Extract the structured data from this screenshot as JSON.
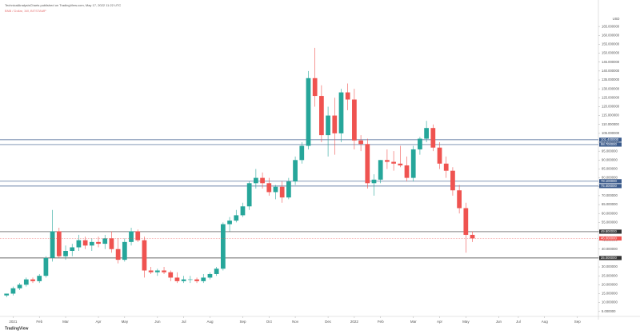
{
  "chart_data": {
    "type": "candlestick",
    "title": "TechnicalAnalysisCharts published on TradingView.com, May 17, 2022 11:22 UTC",
    "subtitle": "BNB / Dollar, 1W, BITSTAMP",
    "currency": "USD",
    "watermark": "TradingView",
    "up_color": "#26a69a",
    "down_color": "#ef5350",
    "open": [
      14,
      15,
      18,
      20,
      23,
      22,
      25,
      35,
      50,
      36,
      39,
      41,
      45,
      42,
      44,
      43,
      46,
      40,
      34,
      44,
      50,
      45,
      28,
      27,
      28,
      27,
      24,
      22,
      23,
      23,
      22,
      24,
      26,
      29,
      54,
      56,
      59,
      64,
      77,
      80,
      77,
      72,
      75,
      69,
      78,
      90,
      98,
      136,
      126,
      104,
      115,
      105,
      128,
      124,
      101,
      99,
      77,
      79,
      90,
      89,
      88,
      87,
      80,
      96,
      102,
      108,
      97,
      88,
      84,
      73,
      63,
      48
    ],
    "high": [
      15,
      19,
      21,
      24,
      24,
      26,
      36,
      62,
      52,
      42,
      43,
      48,
      47,
      46,
      47,
      48,
      50,
      46,
      46,
      52,
      51,
      47,
      30,
      29,
      30,
      28,
      27,
      25,
      25,
      24,
      26,
      27,
      30,
      55,
      58,
      62,
      66,
      78,
      85,
      83,
      80,
      76,
      78,
      80,
      92,
      100,
      140,
      153,
      132,
      120,
      125,
      130,
      133,
      130,
      104,
      102,
      82,
      90,
      96,
      95,
      98,
      92,
      98,
      103,
      112,
      110,
      100,
      92,
      86,
      76,
      66,
      50
    ],
    "low": [
      13,
      14,
      17,
      19,
      21,
      21,
      24,
      33,
      35,
      34,
      36,
      39,
      40,
      39,
      41,
      40,
      38,
      32,
      33,
      42,
      44,
      24,
      26,
      25,
      26,
      22,
      21,
      21,
      21,
      21,
      21,
      23,
      25,
      28,
      50,
      55,
      58,
      62,
      74,
      74,
      70,
      68,
      66,
      68,
      76,
      88,
      96,
      120,
      100,
      92,
      93,
      100,
      118,
      96,
      95,
      74,
      70,
      77,
      85,
      84,
      86,
      78,
      78,
      93,
      100,
      95,
      85,
      80,
      70,
      60,
      38,
      44
    ],
    "close": [
      15,
      18,
      20,
      23,
      22,
      25,
      35,
      50,
      36,
      39,
      41,
      45,
      42,
      44,
      43,
      46,
      40,
      34,
      44,
      50,
      45,
      28,
      27,
      28,
      27,
      24,
      22,
      23,
      23,
      22,
      24,
      26,
      29,
      54,
      56,
      59,
      64,
      77,
      80,
      77,
      72,
      75,
      69,
      78,
      90,
      98,
      136,
      126,
      104,
      115,
      105,
      128,
      124,
      101,
      99,
      77,
      79,
      90,
      89,
      88,
      87,
      80,
      96,
      102,
      108,
      97,
      88,
      84,
      73,
      63,
      48,
      46
    ],
    "current_price": {
      "value": 46,
      "label": "46.000000"
    },
    "levels": [
      {
        "value": 101.4,
        "label": "101.400000"
      },
      {
        "value": 98.7,
        "label": "98.700000"
      },
      {
        "value": 78.1,
        "label": "78.100000"
      },
      {
        "value": 75.4,
        "label": "75.400000"
      },
      {
        "value": 49.8,
        "label": "49.800000"
      },
      {
        "value": 35,
        "label": "35.000000"
      }
    ],
    "xlim": [
      -1,
      90.2
    ],
    "xticks": [
      {
        "value": 1,
        "label": "2021"
      },
      {
        "value": 5,
        "label": "Feb"
      },
      {
        "value": 9,
        "label": "Mar"
      },
      {
        "value": 14,
        "label": "Apr"
      },
      {
        "value": 18,
        "label": "May"
      },
      {
        "value": 23,
        "label": "Jun"
      },
      {
        "value": 27,
        "label": "Jul"
      },
      {
        "value": 31,
        "label": "Aug"
      },
      {
        "value": 36,
        "label": "Sep"
      },
      {
        "value": 40,
        "label": "Oct"
      },
      {
        "value": 44,
        "label": "Nov"
      },
      {
        "value": 49,
        "label": "Dec"
      },
      {
        "value": 53,
        "label": "2022"
      },
      {
        "value": 57,
        "label": "Feb"
      },
      {
        "value": 62,
        "label": "Mar"
      },
      {
        "value": 66,
        "label": "Apr"
      },
      {
        "value": 70,
        "label": "May"
      },
      {
        "value": 75,
        "label": "Jun"
      },
      {
        "value": 78,
        "label": "Jul"
      },
      {
        "value": 82,
        "label": "Aug"
      },
      {
        "value": 87,
        "label": "Sep"
      }
    ],
    "ylim": [
      4,
      170
    ],
    "yticks": [
      {
        "value": 5,
        "label": "5.000000"
      },
      {
        "value": 10,
        "label": "10.000000"
      },
      {
        "value": 15,
        "label": "15.000000"
      },
      {
        "value": 20,
        "label": "20.000000"
      },
      {
        "value": 25,
        "label": "25.000000"
      },
      {
        "value": 30,
        "label": "30.000000"
      },
      {
        "value": 35,
        "label": "35.000000"
      },
      {
        "value": 40,
        "label": "40.000000"
      },
      {
        "value": 45,
        "label": "45.000000"
      },
      {
        "value": 50,
        "label": "50.000000"
      },
      {
        "value": 55,
        "label": "55.000000"
      },
      {
        "value": 60,
        "label": "60.000000"
      },
      {
        "value": 65,
        "label": "65.000000"
      },
      {
        "value": 70,
        "label": "70.000000"
      },
      {
        "value": 75,
        "label": "75.000000"
      },
      {
        "value": 80,
        "label": "80.000000"
      },
      {
        "value": 85,
        "label": "85.000000"
      },
      {
        "value": 90,
        "label": "90.000000"
      },
      {
        "value": 95,
        "label": "95.000000"
      },
      {
        "value": 100,
        "label": "100.000000"
      },
      {
        "value": 105,
        "label": "105.000000"
      },
      {
        "value": 110,
        "label": "110.000000"
      },
      {
        "value": 115,
        "label": "115.000000"
      },
      {
        "value": 120,
        "label": "120.000000"
      },
      {
        "value": 125,
        "label": "125.000000"
      },
      {
        "value": 130,
        "label": "130.000000"
      },
      {
        "value": 135,
        "label": "135.000000"
      },
      {
        "value": 140,
        "label": "140.000000"
      },
      {
        "value": 145,
        "label": "145.000000"
      },
      {
        "value": 150,
        "label": "150.000000"
      },
      {
        "value": 155,
        "label": "155.000000"
      },
      {
        "value": 160,
        "label": "160.000000"
      },
      {
        "value": 165,
        "label": "165.000000"
      }
    ],
    "grid": false
  }
}
